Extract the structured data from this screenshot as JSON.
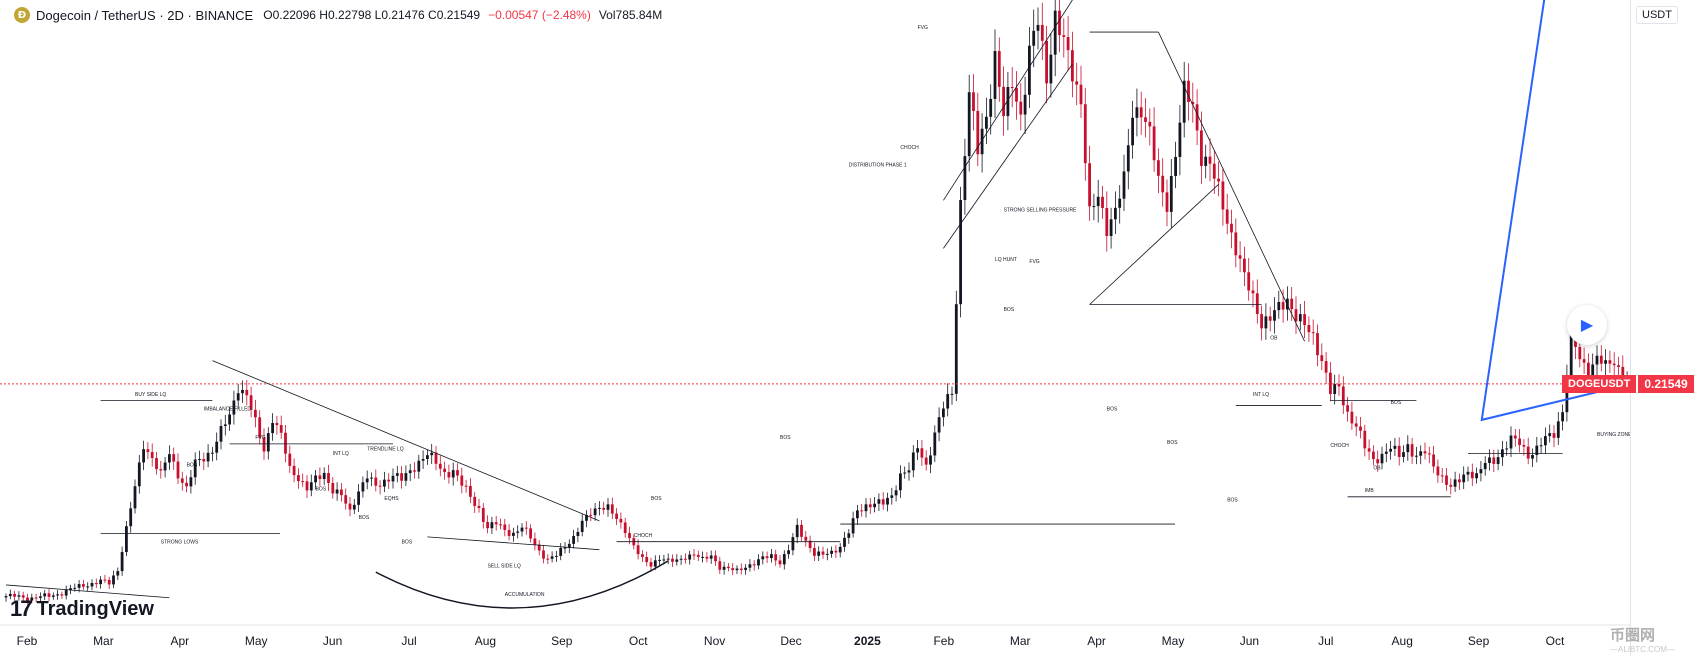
{
  "header": {
    "logo_icon": "dogecoin-icon",
    "pair": "Dogecoin / TetherUS · 2D · BINANCE",
    "ohlc": "O0.22096 H0.22798 L0.21476 C0.21549",
    "change": "−0.00547 (−2.48%)",
    "volume": "Vol785.84M"
  },
  "price_axis": {
    "currency": "USDT",
    "last_symbol": "DOGEUSDT",
    "last_value": "0.21549"
  },
  "branding": {
    "logo_text": "TradingView",
    "logo_icon": "tradingview-icon"
  },
  "controls": {
    "play_icon": "play-icon"
  },
  "watermark": {
    "main": "币圈网",
    "sub": "—ALIBTC.COM—"
  },
  "colors": {
    "up": "#131722",
    "down": "#c8102e",
    "last_price_line": "#f23645",
    "projection": "#2962ff",
    "buying_zone_fill": "#e8edfb",
    "buying_zone_stroke": "#131722"
  },
  "chart_data": {
    "type": "candlestick",
    "symbol": "DOGEUSDT",
    "interval": "2D",
    "ylim": [
      0.065,
      0.455
    ],
    "last_price": 0.21549,
    "yticks": [
      "0.08000",
      "0.10000",
      "0.12000",
      "0.14000",
      "0.16000",
      "0.18000",
      "0.20000",
      "0.22000",
      "0.24000",
      "0.26000",
      "0.28000",
      "0.30000",
      "0.32000",
      "0.34000",
      "0.36000",
      "0.38000",
      "0.40000",
      "0.42000",
      "0.44000"
    ],
    "xticks": [
      "Feb",
      "Mar",
      "Apr",
      "May",
      "Jun",
      "Jul",
      "Aug",
      "Sep",
      "Oct",
      "Nov",
      "Dec",
      "2025",
      "Feb",
      "Mar",
      "Apr",
      "May",
      "Jun",
      "Jul",
      "Aug",
      "Sep",
      "Oct"
    ],
    "close_path": [
      [
        0,
        0.083
      ],
      [
        6,
        0.082
      ],
      [
        10,
        0.083
      ],
      [
        14,
        0.086
      ],
      [
        18,
        0.09
      ],
      [
        22,
        0.092
      ],
      [
        24,
        0.091
      ],
      [
        26,
        0.1
      ],
      [
        28,
        0.125
      ],
      [
        30,
        0.15
      ],
      [
        32,
        0.178
      ],
      [
        34,
        0.17
      ],
      [
        36,
        0.158
      ],
      [
        38,
        0.172
      ],
      [
        40,
        0.16
      ],
      [
        42,
        0.15
      ],
      [
        44,
        0.165
      ],
      [
        48,
        0.175
      ],
      [
        52,
        0.195
      ],
      [
        54,
        0.215
      ],
      [
        56,
        0.208
      ],
      [
        58,
        0.19
      ],
      [
        60,
        0.175
      ],
      [
        62,
        0.195
      ],
      [
        64,
        0.182
      ],
      [
        66,
        0.162
      ],
      [
        68,
        0.158
      ],
      [
        70,
        0.15
      ],
      [
        72,
        0.155
      ],
      [
        74,
        0.16
      ],
      [
        76,
        0.15
      ],
      [
        78,
        0.145
      ],
      [
        80,
        0.135
      ],
      [
        82,
        0.15
      ],
      [
        84,
        0.158
      ],
      [
        86,
        0.15
      ],
      [
        88,
        0.155
      ],
      [
        90,
        0.16
      ],
      [
        92,
        0.155
      ],
      [
        94,
        0.16
      ],
      [
        96,
        0.168
      ],
      [
        98,
        0.172
      ],
      [
        100,
        0.165
      ],
      [
        102,
        0.16
      ],
      [
        104,
        0.162
      ],
      [
        106,
        0.152
      ],
      [
        108,
        0.145
      ],
      [
        110,
        0.138
      ],
      [
        112,
        0.125
      ],
      [
        114,
        0.128
      ],
      [
        116,
        0.125
      ],
      [
        118,
        0.122
      ],
      [
        120,
        0.125
      ],
      [
        122,
        0.12
      ],
      [
        124,
        0.112
      ],
      [
        126,
        0.105
      ],
      [
        128,
        0.108
      ],
      [
        130,
        0.115
      ],
      [
        132,
        0.12
      ],
      [
        134,
        0.128
      ],
      [
        136,
        0.135
      ],
      [
        138,
        0.14
      ],
      [
        140,
        0.138
      ],
      [
        142,
        0.13
      ],
      [
        144,
        0.125
      ],
      [
        146,
        0.115
      ],
      [
        148,
        0.105
      ],
      [
        150,
        0.102
      ],
      [
        152,
        0.108
      ],
      [
        154,
        0.105
      ],
      [
        156,
        0.104
      ],
      [
        158,
        0.108
      ],
      [
        160,
        0.11
      ],
      [
        162,
        0.105
      ],
      [
        164,
        0.108
      ],
      [
        166,
        0.102
      ],
      [
        168,
        0.1
      ],
      [
        170,
        0.098
      ],
      [
        172,
        0.102
      ],
      [
        174,
        0.104
      ],
      [
        176,
        0.106
      ],
      [
        178,
        0.108
      ],
      [
        180,
        0.105
      ],
      [
        182,
        0.112
      ],
      [
        184,
        0.125
      ],
      [
        186,
        0.118
      ],
      [
        188,
        0.11
      ],
      [
        190,
        0.108
      ],
      [
        192,
        0.11
      ],
      [
        194,
        0.115
      ],
      [
        196,
        0.123
      ],
      [
        198,
        0.135
      ],
      [
        200,
        0.14
      ],
      [
        202,
        0.142
      ],
      [
        204,
        0.14
      ],
      [
        206,
        0.145
      ],
      [
        208,
        0.16
      ],
      [
        210,
        0.162
      ],
      [
        212,
        0.175
      ],
      [
        214,
        0.165
      ],
      [
        216,
        0.185
      ],
      [
        218,
        0.2
      ],
      [
        220,
        0.21
      ],
      [
        222,
        0.33
      ],
      [
        224,
        0.395
      ],
      [
        226,
        0.36
      ],
      [
        228,
        0.385
      ],
      [
        230,
        0.42
      ],
      [
        232,
        0.38
      ],
      [
        234,
        0.405
      ],
      [
        236,
        0.385
      ],
      [
        238,
        0.42
      ],
      [
        240,
        0.44
      ],
      [
        242,
        0.41
      ],
      [
        244,
        0.445
      ],
      [
        246,
        0.425
      ],
      [
        248,
        0.41
      ],
      [
        250,
        0.395
      ],
      [
        252,
        0.32
      ],
      [
        254,
        0.33
      ],
      [
        256,
        0.315
      ],
      [
        258,
        0.325
      ],
      [
        260,
        0.34
      ],
      [
        262,
        0.385
      ],
      [
        264,
        0.39
      ],
      [
        266,
        0.37
      ],
      [
        268,
        0.34
      ],
      [
        270,
        0.33
      ],
      [
        272,
        0.36
      ],
      [
        274,
        0.395
      ],
      [
        276,
        0.39
      ],
      [
        278,
        0.36
      ],
      [
        280,
        0.35
      ],
      [
        282,
        0.335
      ],
      [
        284,
        0.32
      ],
      [
        286,
        0.3
      ],
      [
        288,
        0.28
      ],
      [
        290,
        0.27
      ],
      [
        292,
        0.255
      ],
      [
        294,
        0.255
      ],
      [
        296,
        0.262
      ],
      [
        298,
        0.27
      ],
      [
        300,
        0.258
      ],
      [
        302,
        0.25
      ],
      [
        304,
        0.245
      ],
      [
        306,
        0.232
      ],
      [
        308,
        0.21
      ],
      [
        310,
        0.212
      ],
      [
        312,
        0.198
      ],
      [
        314,
        0.19
      ],
      [
        316,
        0.175
      ],
      [
        318,
        0.168
      ],
      [
        320,
        0.172
      ],
      [
        322,
        0.175
      ],
      [
        324,
        0.17
      ],
      [
        326,
        0.178
      ],
      [
        328,
        0.17
      ],
      [
        330,
        0.172
      ],
      [
        332,
        0.165
      ],
      [
        334,
        0.158
      ],
      [
        336,
        0.15
      ],
      [
        338,
        0.155
      ],
      [
        340,
        0.162
      ],
      [
        342,
        0.158
      ],
      [
        344,
        0.165
      ],
      [
        346,
        0.168
      ],
      [
        348,
        0.175
      ],
      [
        350,
        0.18
      ],
      [
        352,
        0.178
      ],
      [
        354,
        0.172
      ],
      [
        356,
        0.175
      ],
      [
        358,
        0.18
      ],
      [
        360,
        0.185
      ],
      [
        362,
        0.2
      ],
      [
        364,
        0.245
      ],
      [
        366,
        0.23
      ],
      [
        368,
        0.225
      ],
      [
        370,
        0.232
      ],
      [
        372,
        0.225
      ],
      [
        374,
        0.23
      ],
      [
        376,
        0.222
      ],
      [
        378,
        0.21549
      ]
    ]
  },
  "annotations": {
    "labels": [
      "BUY SIDE LQ",
      "IMBALANCE FILLED",
      "BOS",
      "FVG",
      "INT LQ",
      "TRENDLINE LQ",
      "BOS",
      "EQHS",
      "BOS",
      "BOS",
      "STRONG LOWS",
      "SELL SIDE LQ",
      "ACCUMULATION",
      "CHOCH",
      "BOS",
      "BOS",
      "FVG",
      "CHOCH",
      "DISTRIBUTION PHASE 1",
      "LQ HUNT",
      "BOS",
      "STRONG SELLING PRESSURE",
      "FVG",
      "OB",
      "BOS",
      "INT LQ",
      "BOS",
      "BOS",
      "CHOCH",
      "OB",
      "IMB",
      "BOS",
      "BUYING ZONE"
    ]
  }
}
